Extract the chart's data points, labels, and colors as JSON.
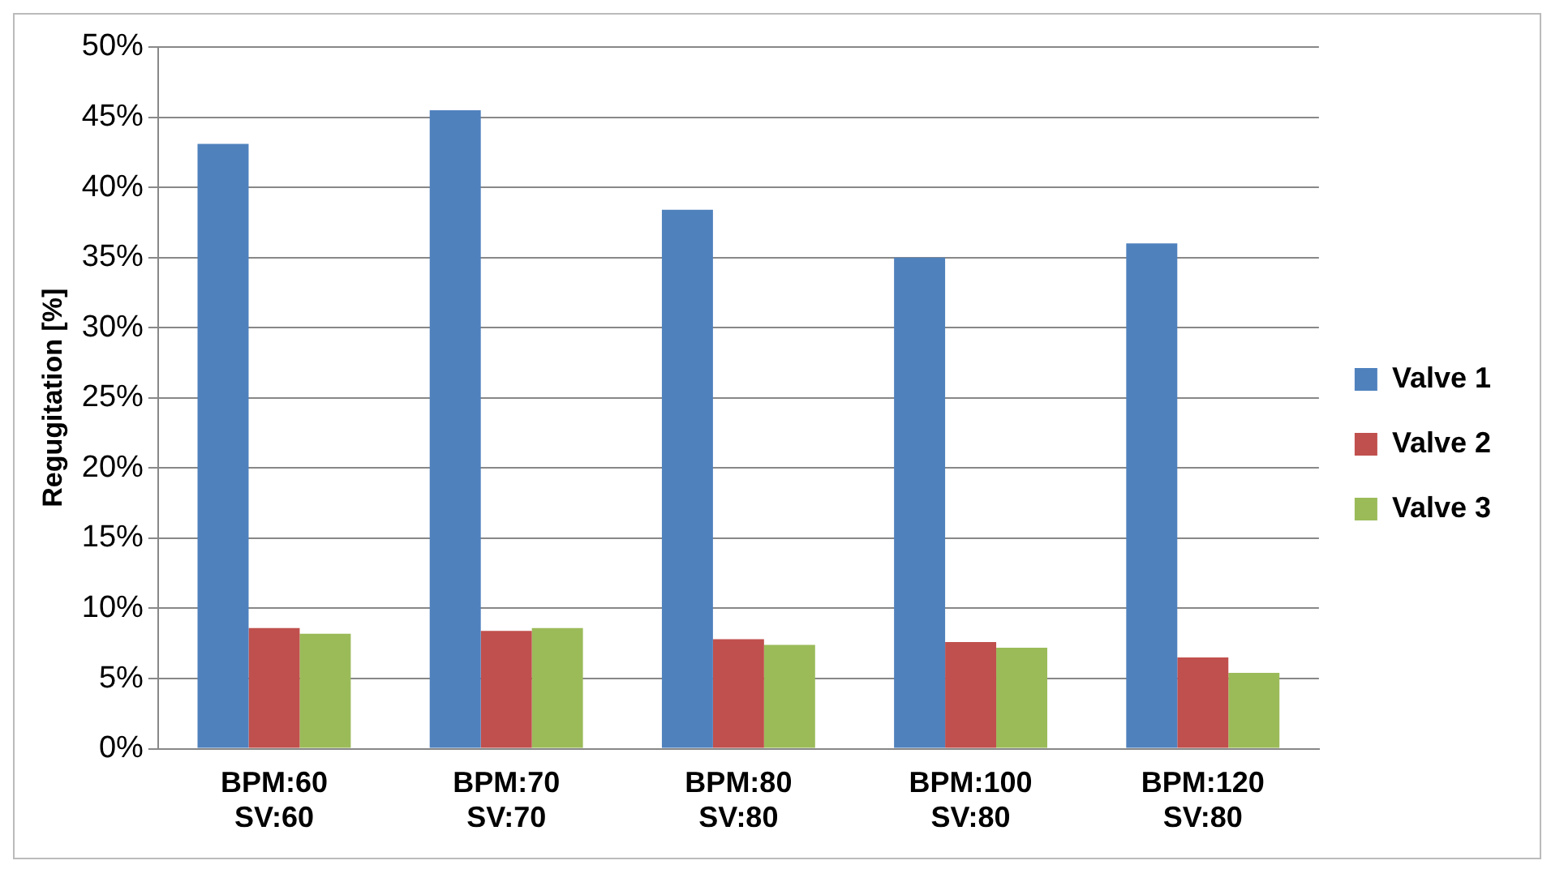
{
  "chart_data": {
    "type": "bar",
    "ylabel": "Regugitation [%]",
    "categories": [
      "BPM:60\nSV:60",
      "BPM:70\nSV:70",
      "BPM:80\nSV:80",
      "BPM:100\nSV:80",
      "BPM:120\nSV:80"
    ],
    "series": [
      {
        "name": "Valve 1",
        "color": "#4f81bd",
        "values": [
          43.1,
          45.5,
          38.4,
          35.0,
          36.0
        ]
      },
      {
        "name": "Valve 2",
        "color": "#c0504d",
        "values": [
          8.6,
          8.4,
          7.8,
          7.6,
          6.5
        ]
      },
      {
        "name": "Valve 3",
        "color": "#9bbb59",
        "values": [
          8.2,
          8.6,
          7.4,
          7.2,
          5.4
        ]
      }
    ],
    "ylim": [
      0,
      50
    ],
    "yticks": [
      {
        "value": 0,
        "label": "0%"
      },
      {
        "value": 5,
        "label": "5%"
      },
      {
        "value": 10,
        "label": "10%"
      },
      {
        "value": 15,
        "label": "15%"
      },
      {
        "value": 20,
        "label": "20%"
      },
      {
        "value": 25,
        "label": "25%"
      },
      {
        "value": 30,
        "label": "30%"
      },
      {
        "value": 35,
        "label": "35%"
      },
      {
        "value": 40,
        "label": "40%"
      },
      {
        "value": 45,
        "label": "45%"
      },
      {
        "value": 50,
        "label": "50%"
      }
    ],
    "grid": "y",
    "legend": "right"
  }
}
